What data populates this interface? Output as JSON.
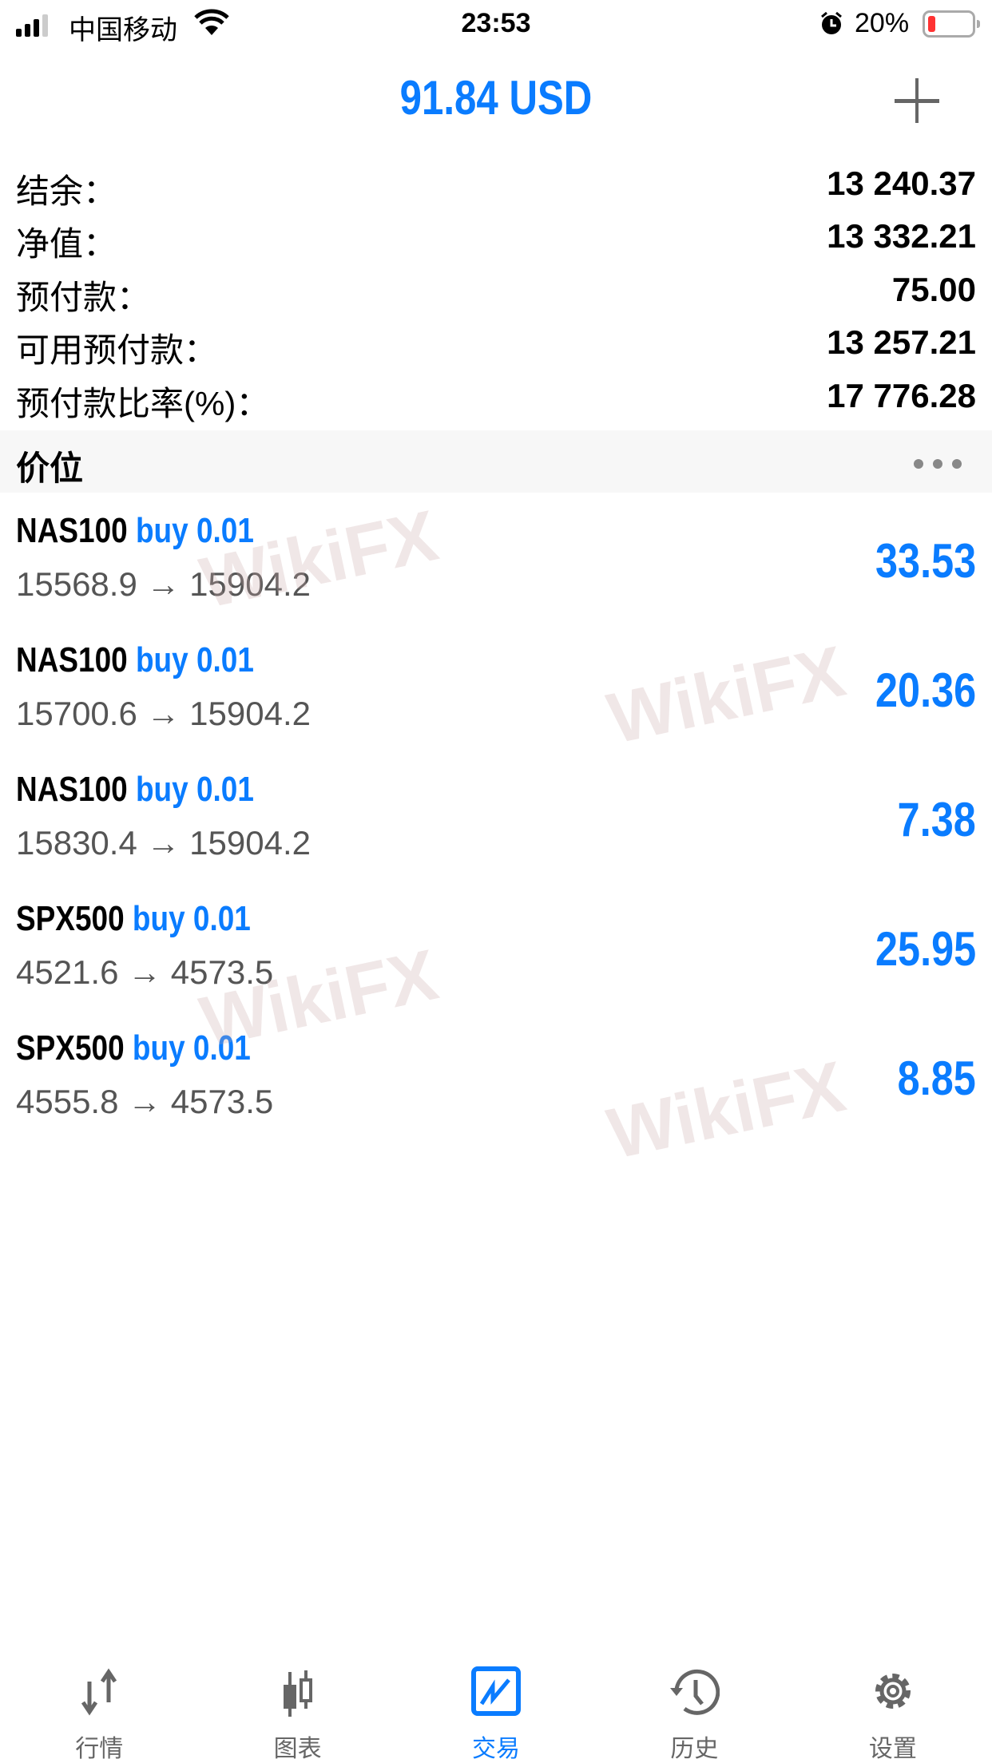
{
  "status_bar": {
    "carrier": "中国移动",
    "time": "23:53",
    "battery": "20%",
    "battery_level": 0.2
  },
  "header": {
    "title": "91.84 USD",
    "add_icon": "plus-icon"
  },
  "summary": [
    {
      "label": "结余：",
      "value": "13 240.37"
    },
    {
      "label": "净值：",
      "value": "13 332.21"
    },
    {
      "label": "预付款：",
      "value": "75.00"
    },
    {
      "label": "可用预付款：",
      "value": "13 257.21"
    },
    {
      "label": "预付款比率(%)：",
      "value": "17 776.28"
    }
  ],
  "section": {
    "title": "价位",
    "more_icon": "more-dots-icon"
  },
  "positions": [
    {
      "symbol": "NAS100",
      "side": "buy 0.01",
      "prices": "15568.9 → 15904.2",
      "profit": "33.53"
    },
    {
      "symbol": "NAS100",
      "side": "buy 0.01",
      "prices": "15700.6 → 15904.2",
      "profit": "20.36"
    },
    {
      "symbol": "NAS100",
      "side": "buy 0.01",
      "prices": "15830.4 → 15904.2",
      "profit": "7.38"
    },
    {
      "symbol": "SPX500",
      "side": "buy 0.01",
      "prices": "4521.6 → 4573.5",
      "profit": "25.95"
    },
    {
      "symbol": "SPX500",
      "side": "buy 0.01",
      "prices": "4555.8 → 4573.5",
      "profit": "8.85"
    }
  ],
  "watermark": "WikiFX",
  "tabs": [
    {
      "label": "行情",
      "icon": "arrows-up-down-icon"
    },
    {
      "label": "图表",
      "icon": "candlestick-icon"
    },
    {
      "label": "交易",
      "icon": "trade-chart-icon",
      "active": true
    },
    {
      "label": "历史",
      "icon": "history-icon"
    },
    {
      "label": "设置",
      "icon": "gear-icon"
    }
  ],
  "colors": {
    "accent": "#0a7cff",
    "text": "#000000",
    "muted": "#666666",
    "battery_low": "#ff3333"
  }
}
